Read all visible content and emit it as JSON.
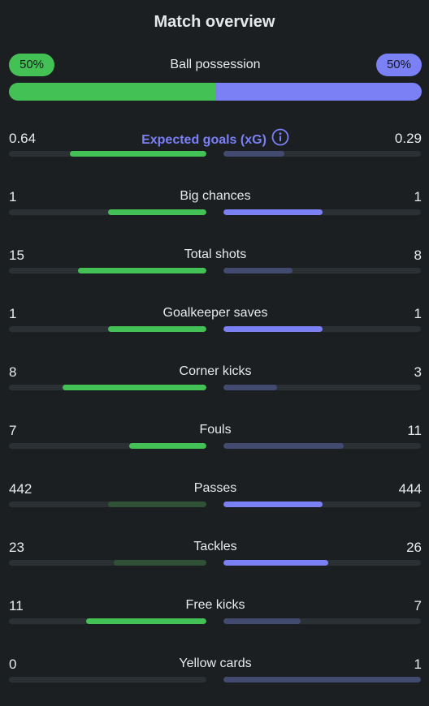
{
  "title": "Match overview",
  "possession": {
    "label": "Ball possession",
    "home": "50%",
    "away": "50%",
    "home_share": 0.5
  },
  "colors": {
    "home": "#44c155",
    "home_dim": "#2f5236",
    "away": "#7b80f5",
    "away_dim": "#434a70",
    "track": "#2b3034"
  },
  "stats": [
    {
      "label": "Expected goals (xG)",
      "home": "0.64",
      "away": "0.29",
      "home_frac": 0.69,
      "away_frac": 0.31,
      "home_strong": true,
      "away_strong": false,
      "accent": true,
      "icon": "info-icon"
    },
    {
      "label": "Big chances",
      "home": "1",
      "away": "1",
      "home_frac": 0.5,
      "away_frac": 0.5,
      "home_strong": true,
      "away_strong": true
    },
    {
      "label": "Total shots",
      "home": "15",
      "away": "8",
      "home_frac": 0.65,
      "away_frac": 0.35,
      "home_strong": true,
      "away_strong": false
    },
    {
      "label": "Goalkeeper saves",
      "home": "1",
      "away": "1",
      "home_frac": 0.5,
      "away_frac": 0.5,
      "home_strong": true,
      "away_strong": true
    },
    {
      "label": "Corner kicks",
      "home": "8",
      "away": "3",
      "home_frac": 0.73,
      "away_frac": 0.27,
      "home_strong": true,
      "away_strong": false
    },
    {
      "label": "Fouls",
      "home": "7",
      "away": "11",
      "home_frac": 0.39,
      "away_frac": 0.61,
      "home_strong": true,
      "away_strong": false
    },
    {
      "label": "Passes",
      "home": "442",
      "away": "444",
      "home_frac": 0.5,
      "away_frac": 0.5,
      "home_strong": false,
      "away_strong": true
    },
    {
      "label": "Tackles",
      "home": "23",
      "away": "26",
      "home_frac": 0.47,
      "away_frac": 0.53,
      "home_strong": false,
      "away_strong": true
    },
    {
      "label": "Free kicks",
      "home": "11",
      "away": "7",
      "home_frac": 0.61,
      "away_frac": 0.39,
      "home_strong": true,
      "away_strong": false
    },
    {
      "label": "Yellow cards",
      "home": "0",
      "away": "1",
      "home_frac": 0.0,
      "away_frac": 1.0,
      "home_strong": false,
      "away_strong": false
    }
  ]
}
